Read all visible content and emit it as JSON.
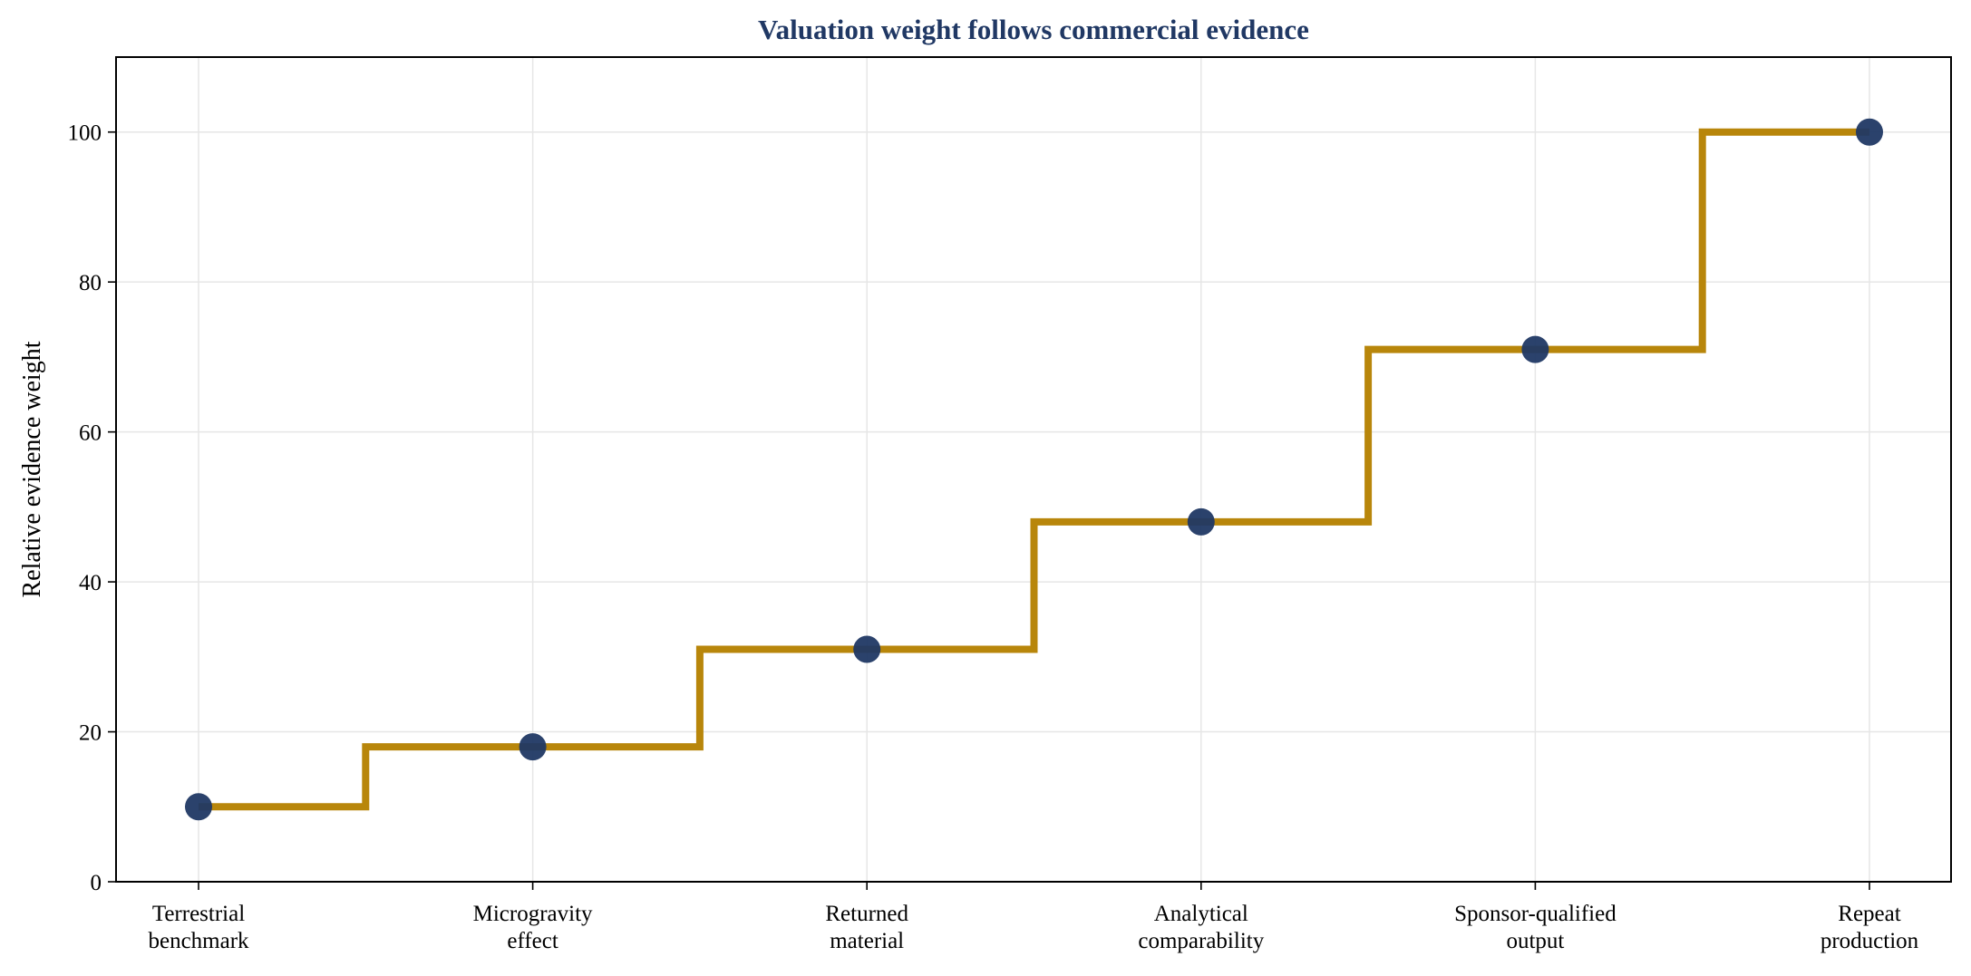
{
  "chart_data": {
    "type": "line",
    "step": "mid",
    "title": "Valuation weight follows commercial evidence",
    "xlabel": "",
    "ylabel": "Relative evidence weight",
    "categories": [
      [
        "Terrestrial",
        "benchmark"
      ],
      [
        "Microgravity",
        "effect"
      ],
      [
        "Returned",
        "material"
      ],
      [
        "Analytical",
        "comparability"
      ],
      [
        "Sponsor-qualified",
        "output"
      ],
      [
        "Repeat",
        "production"
      ]
    ],
    "series": [
      {
        "values": [
          10,
          18,
          31,
          48,
          71,
          100
        ]
      }
    ],
    "ylim": [
      0,
      110
    ],
    "yticks": [
      "0",
      "20",
      "40",
      "60",
      "80",
      "100"
    ],
    "grid": true,
    "legend": "none",
    "colors": {
      "title": "#203864",
      "line": "#b8860b",
      "marker": "#203864",
      "grid": "#e6e6e6",
      "axis": "#000000"
    }
  }
}
